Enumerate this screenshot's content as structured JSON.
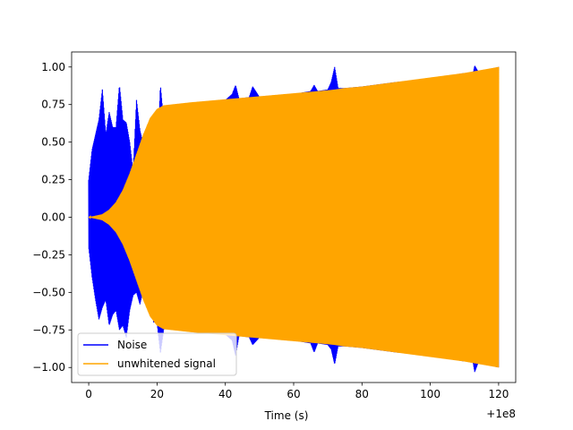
{
  "chart_data": {
    "type": "line",
    "title": "",
    "xlabel": "Time (s)",
    "ylabel": "",
    "x_offset_label": "+1e8",
    "xlim": [
      -5,
      125
    ],
    "ylim": [
      -1.1,
      1.1
    ],
    "x_ticks": [
      0,
      20,
      40,
      60,
      80,
      100,
      120
    ],
    "x_tick_labels": [
      "0",
      "20",
      "40",
      "60",
      "80",
      "100",
      "120"
    ],
    "y_ticks": [
      -1.0,
      -0.75,
      -0.5,
      -0.25,
      0.0,
      0.25,
      0.5,
      0.75,
      1.0
    ],
    "y_tick_labels": [
      "−1.00",
      "−0.75",
      "−0.50",
      "−0.25",
      "0.00",
      "0.25",
      "0.50",
      "0.75",
      "1.00"
    ],
    "grid": false,
    "legend_position": "lower-left",
    "series": [
      {
        "name": "Noise",
        "color": "#0000ff",
        "envelope": {
          "x": [
            0,
            1,
            2,
            3,
            4,
            5,
            6,
            7,
            8,
            9,
            10,
            11,
            12,
            13,
            14,
            15,
            16,
            17,
            18,
            19,
            20,
            21,
            22,
            23,
            24,
            25,
            26,
            27,
            28,
            29,
            30,
            33,
            36,
            40,
            42,
            43,
            44,
            47,
            48,
            50,
            55,
            60,
            65,
            66,
            67,
            70,
            71,
            72,
            73,
            75,
            80,
            90,
            100,
            105,
            110,
            112,
            113,
            114,
            116,
            120
          ],
          "upper": [
            0.25,
            0.45,
            0.55,
            0.65,
            0.85,
            0.55,
            0.7,
            0.6,
            0.6,
            0.88,
            0.65,
            0.63,
            0.5,
            0.3,
            0.78,
            0.58,
            0.48,
            0.55,
            0.45,
            0.35,
            0.35,
            0.88,
            0.62,
            0.5,
            0.62,
            0.6,
            0.6,
            0.62,
            0.68,
            0.72,
            0.75,
            0.76,
            0.77,
            0.78,
            0.82,
            0.88,
            0.79,
            0.8,
            0.87,
            0.8,
            0.81,
            0.82,
            0.84,
            0.88,
            0.84,
            0.85,
            0.9,
            1.0,
            0.86,
            0.86,
            0.87,
            0.9,
            0.92,
            0.94,
            0.96,
            0.9,
            1.01,
            0.97,
            0.98,
            1.0
          ],
          "lower": [
            -0.2,
            -0.4,
            -0.55,
            -0.68,
            -0.6,
            -0.55,
            -0.72,
            -0.65,
            -0.62,
            -0.75,
            -0.72,
            -0.8,
            -0.62,
            -0.52,
            -0.5,
            -0.58,
            -0.48,
            -0.55,
            -0.55,
            -0.7,
            -0.7,
            -0.9,
            -0.74,
            -0.74,
            -0.74,
            -0.74,
            -0.74,
            -0.74,
            -0.75,
            -0.75,
            -0.76,
            -0.76,
            -0.77,
            -0.78,
            -0.82,
            -0.92,
            -0.79,
            -0.8,
            -0.85,
            -0.8,
            -0.81,
            -0.82,
            -0.84,
            -0.9,
            -0.84,
            -0.85,
            -0.88,
            -0.98,
            -0.86,
            -0.86,
            -0.87,
            -0.9,
            -0.92,
            -0.94,
            -0.96,
            -0.9,
            -1.03,
            -0.97,
            -0.98,
            -1.0
          ]
        }
      },
      {
        "name": "unwhitened signal",
        "color": "#ffa500",
        "envelope": {
          "x": [
            0,
            2,
            4,
            6,
            8,
            10,
            12,
            14,
            16,
            18,
            20,
            22,
            24,
            26,
            28,
            30,
            35,
            40,
            45,
            50,
            55,
            60,
            65,
            70,
            72,
            75,
            80,
            90,
            100,
            110,
            120
          ],
          "upper": [
            0.0,
            0.01,
            0.02,
            0.05,
            0.1,
            0.18,
            0.29,
            0.42,
            0.55,
            0.66,
            0.72,
            0.745,
            0.75,
            0.755,
            0.76,
            0.765,
            0.775,
            0.785,
            0.795,
            0.805,
            0.815,
            0.825,
            0.835,
            0.845,
            0.85,
            0.86,
            0.87,
            0.9,
            0.93,
            0.96,
            1.0
          ],
          "lower": [
            0.0,
            -0.01,
            -0.02,
            -0.05,
            -0.1,
            -0.18,
            -0.29,
            -0.42,
            -0.55,
            -0.66,
            -0.72,
            -0.745,
            -0.75,
            -0.755,
            -0.76,
            -0.765,
            -0.775,
            -0.785,
            -0.795,
            -0.805,
            -0.815,
            -0.825,
            -0.835,
            -0.845,
            -0.85,
            -0.86,
            -0.87,
            -0.9,
            -0.93,
            -0.96,
            -1.0
          ]
        }
      }
    ]
  }
}
